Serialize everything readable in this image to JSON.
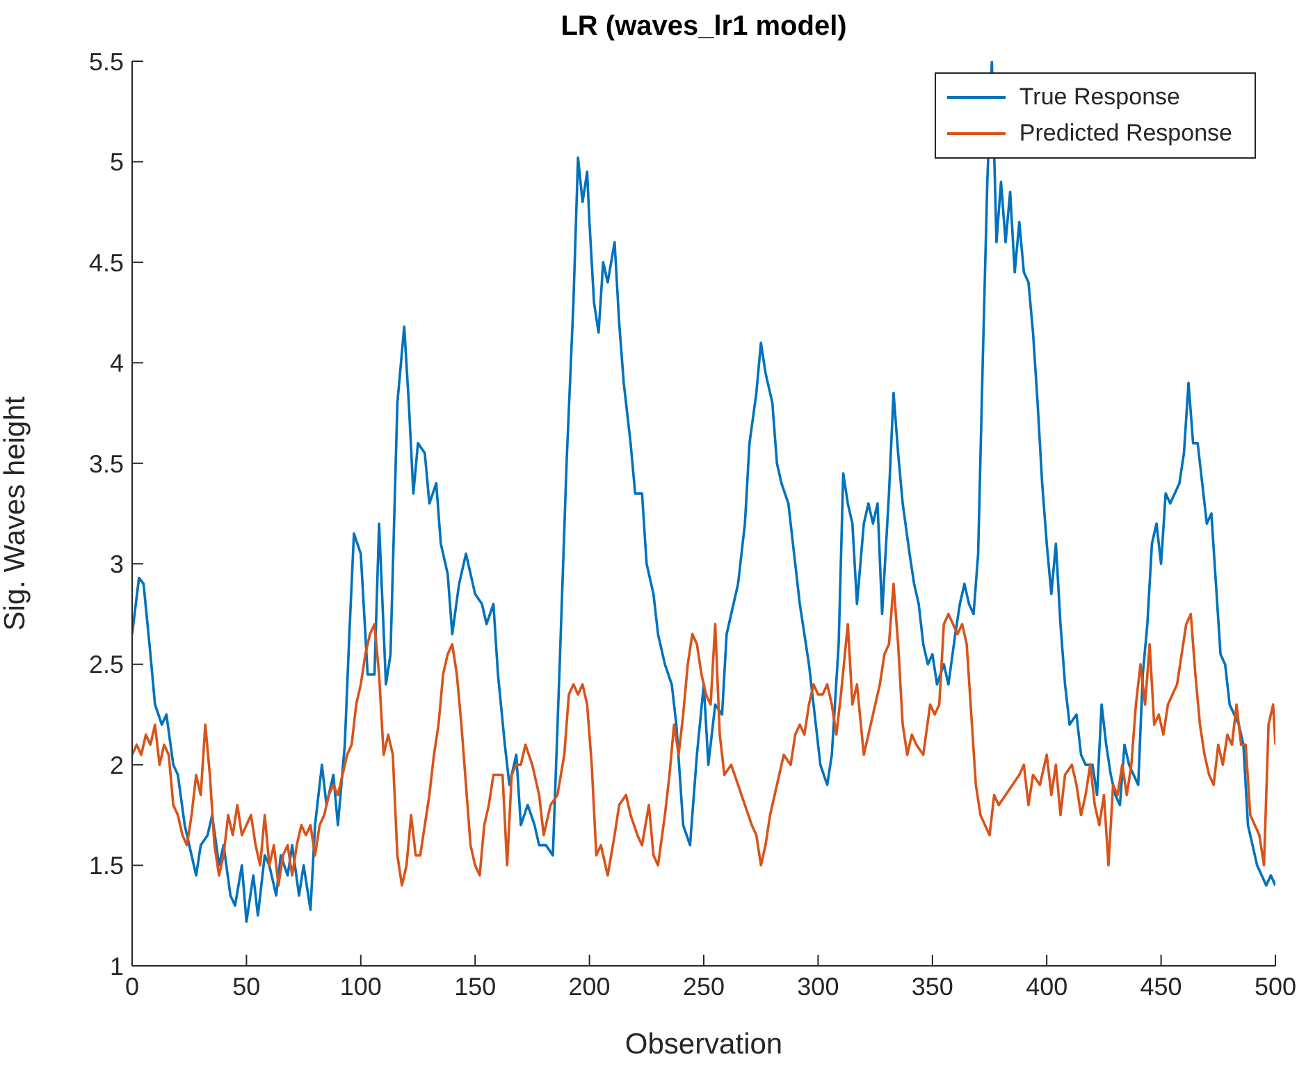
{
  "chart_data": {
    "type": "line",
    "title": "LR (waves_lr1 model)",
    "xlabel": "Observation",
    "ylabel": "Sig. Waves height",
    "xlim": [
      0,
      500
    ],
    "xticks": [
      0,
      50,
      100,
      150,
      200,
      250,
      300,
      350,
      400,
      450,
      500
    ],
    "ylim": [
      1,
      5.5
    ],
    "yticks": [
      1,
      1.5,
      2,
      2.5,
      3,
      3.5,
      4,
      4.5,
      5,
      5.5
    ],
    "legend": "top right",
    "marker": "none",
    "line_style": "solid",
    "series": [
      {
        "name": "True Response",
        "color": "#0072bd",
        "x": [
          0,
          3,
          5,
          8,
          10,
          13,
          15,
          18,
          20,
          23,
          25,
          28,
          30,
          33,
          35,
          38,
          40,
          43,
          45,
          48,
          50,
          53,
          55,
          58,
          60,
          63,
          65,
          68,
          70,
          73,
          75,
          78,
          80,
          83,
          85,
          88,
          90,
          93,
          95,
          97,
          100,
          103,
          106,
          108,
          111,
          113,
          116,
          119,
          121,
          123,
          125,
          128,
          130,
          133,
          135,
          138,
          140,
          143,
          146,
          148,
          150,
          153,
          155,
          158,
          160,
          163,
          165,
          168,
          170,
          173,
          176,
          178,
          181,
          184,
          187,
          190,
          193,
          195,
          197,
          199,
          200,
          202,
          204,
          206,
          208,
          211,
          213,
          215,
          218,
          220,
          223,
          225,
          228,
          230,
          233,
          236,
          238,
          241,
          244,
          247,
          250,
          252,
          255,
          258,
          260,
          263,
          265,
          268,
          270,
          273,
          275,
          277,
          280,
          282,
          284,
          287,
          289,
          292,
          294,
          296,
          299,
          301,
          304,
          306,
          309,
          311,
          313,
          315,
          317,
          320,
          322,
          324,
          326,
          328,
          331,
          333,
          335,
          337,
          340,
          342,
          344,
          346,
          348,
          350,
          352,
          355,
          357,
          360,
          362,
          364,
          366,
          368,
          370,
          372,
          374,
          376,
          378,
          380,
          382,
          384,
          386,
          388,
          390,
          392,
          394,
          396,
          398,
          400,
          402,
          404,
          406,
          408,
          410,
          413,
          415,
          417,
          420,
          422,
          424,
          426,
          428,
          430,
          432,
          434,
          436,
          438,
          440,
          442,
          444,
          446,
          448,
          450,
          452,
          454,
          456,
          458,
          460,
          462,
          464,
          466,
          468,
          470,
          472,
          474,
          476,
          478,
          480,
          482,
          484,
          486,
          488,
          490,
          492,
          494,
          496,
          498,
          500
        ],
        "values": [
          2.65,
          2.93,
          2.9,
          2.55,
          2.3,
          2.2,
          2.25,
          2.0,
          1.95,
          1.7,
          1.6,
          1.45,
          1.6,
          1.65,
          1.75,
          1.5,
          1.6,
          1.35,
          1.3,
          1.5,
          1.22,
          1.45,
          1.25,
          1.55,
          1.5,
          1.35,
          1.55,
          1.45,
          1.6,
          1.35,
          1.5,
          1.28,
          1.7,
          2.0,
          1.8,
          1.95,
          1.7,
          2.1,
          2.65,
          3.15,
          3.05,
          2.45,
          2.45,
          3.2,
          2.4,
          2.55,
          3.8,
          4.18,
          3.8,
          3.35,
          3.6,
          3.55,
          3.3,
          3.4,
          3.1,
          2.95,
          2.65,
          2.9,
          3.05,
          2.95,
          2.85,
          2.8,
          2.7,
          2.8,
          2.45,
          2.1,
          1.9,
          2.05,
          1.7,
          1.8,
          1.7,
          1.6,
          1.6,
          1.55,
          2.5,
          3.5,
          4.3,
          5.02,
          4.8,
          4.95,
          4.7,
          4.3,
          4.15,
          4.5,
          4.4,
          4.6,
          4.2,
          3.9,
          3.6,
          3.35,
          3.35,
          3.0,
          2.85,
          2.65,
          2.5,
          2.4,
          2.2,
          1.7,
          1.6,
          2.05,
          2.4,
          2.0,
          2.3,
          2.25,
          2.65,
          2.8,
          2.9,
          3.2,
          3.6,
          3.85,
          4.1,
          3.95,
          3.8,
          3.5,
          3.4,
          3.3,
          3.1,
          2.8,
          2.65,
          2.5,
          2.2,
          2.0,
          1.9,
          2.05,
          2.6,
          3.45,
          3.3,
          3.2,
          2.8,
          3.2,
          3.3,
          3.2,
          3.3,
          2.75,
          3.35,
          3.85,
          3.55,
          3.3,
          3.05,
          2.9,
          2.8,
          2.6,
          2.5,
          2.55,
          2.4,
          2.5,
          2.4,
          2.65,
          2.8,
          2.9,
          2.8,
          2.75,
          3.05,
          4.0,
          4.9,
          5.5,
          4.6,
          4.9,
          4.6,
          4.85,
          4.45,
          4.7,
          4.45,
          4.4,
          4.15,
          3.8,
          3.4,
          3.1,
          2.85,
          3.1,
          2.7,
          2.4,
          2.2,
          2.25,
          2.05,
          2.0,
          2.0,
          1.85,
          2.3,
          2.1,
          1.95,
          1.85,
          1.8,
          2.1,
          2.0,
          1.95,
          1.9,
          2.45,
          2.7,
          3.1,
          3.2,
          3.0,
          3.35,
          3.3,
          3.35,
          3.4,
          3.55,
          3.9,
          3.6,
          3.6,
          3.4,
          3.2,
          3.25,
          2.9,
          2.55,
          2.5,
          2.3,
          2.25,
          2.2,
          2.1,
          1.7,
          1.6,
          1.5,
          1.45,
          1.4,
          1.45,
          1.4
        ]
      },
      {
        "name": "Predicted Response",
        "color": "#d95319",
        "x": [
          0,
          2,
          4,
          6,
          8,
          10,
          12,
          14,
          16,
          18,
          20,
          22,
          24,
          26,
          28,
          30,
          32,
          34,
          36,
          38,
          40,
          42,
          44,
          46,
          48,
          50,
          52,
          54,
          56,
          58,
          60,
          62,
          64,
          66,
          68,
          70,
          72,
          74,
          76,
          78,
          80,
          82,
          84,
          86,
          88,
          90,
          92,
          94,
          96,
          98,
          100,
          102,
          104,
          106,
          108,
          110,
          112,
          114,
          116,
          118,
          120,
          122,
          124,
          126,
          128,
          130,
          132,
          134,
          136,
          138,
          140,
          142,
          144,
          146,
          148,
          150,
          152,
          154,
          156,
          158,
          160,
          162,
          164,
          166,
          168,
          170,
          172,
          175,
          178,
          180,
          183,
          186,
          189,
          191,
          193,
          195,
          197,
          199,
          201,
          203,
          205,
          208,
          211,
          213,
          216,
          218,
          221,
          223,
          226,
          228,
          230,
          233,
          235,
          237,
          239,
          241,
          243,
          245,
          247,
          249,
          251,
          253,
          255,
          257,
          259,
          262,
          265,
          268,
          271,
          273,
          275,
          277,
          279,
          282,
          285,
          288,
          290,
          292,
          294,
          296,
          298,
          300,
          302,
          304,
          306,
          308,
          310,
          313,
          315,
          317,
          320,
          322,
          325,
          327,
          329,
          331,
          333,
          335,
          337,
          339,
          341,
          343,
          346,
          349,
          351,
          353,
          355,
          357,
          359,
          361,
          363,
          365,
          367,
          369,
          371,
          373,
          375,
          377,
          379,
          382,
          385,
          388,
          390,
          392,
          394,
          397,
          400,
          402,
          404,
          406,
          408,
          411,
          413,
          415,
          417,
          419,
          421,
          423,
          425,
          427,
          429,
          431,
          433,
          435,
          437,
          439,
          441,
          443,
          445,
          447,
          449,
          451,
          453,
          455,
          457,
          459,
          461,
          463,
          465,
          467,
          469,
          471,
          473,
          475,
          477,
          479,
          481,
          483,
          485,
          487,
          489,
          491,
          493,
          495,
          497,
          499,
          500
        ],
        "values": [
          2.05,
          2.1,
          2.05,
          2.15,
          2.1,
          2.2,
          2.0,
          2.1,
          2.05,
          1.8,
          1.75,
          1.65,
          1.6,
          1.75,
          1.95,
          1.85,
          2.2,
          1.95,
          1.6,
          1.45,
          1.55,
          1.75,
          1.65,
          1.8,
          1.65,
          1.7,
          1.75,
          1.6,
          1.5,
          1.75,
          1.5,
          1.6,
          1.4,
          1.55,
          1.6,
          1.45,
          1.6,
          1.7,
          1.65,
          1.7,
          1.55,
          1.7,
          1.75,
          1.85,
          1.9,
          1.85,
          1.95,
          2.05,
          2.1,
          2.3,
          2.4,
          2.55,
          2.65,
          2.7,
          2.45,
          2.05,
          2.15,
          2.05,
          1.55,
          1.4,
          1.5,
          1.75,
          1.55,
          1.55,
          1.7,
          1.85,
          2.05,
          2.2,
          2.45,
          2.55,
          2.6,
          2.45,
          2.2,
          1.9,
          1.6,
          1.5,
          1.45,
          1.7,
          1.8,
          1.95,
          1.95,
          1.95,
          1.5,
          1.95,
          2.0,
          2.0,
          2.1,
          2.0,
          1.85,
          1.65,
          1.8,
          1.85,
          2.05,
          2.35,
          2.4,
          2.35,
          2.4,
          2.3,
          2.0,
          1.55,
          1.6,
          1.45,
          1.65,
          1.8,
          1.85,
          1.75,
          1.65,
          1.6,
          1.8,
          1.55,
          1.5,
          1.75,
          1.95,
          2.2,
          2.05,
          2.25,
          2.5,
          2.65,
          2.6,
          2.45,
          2.35,
          2.3,
          2.7,
          2.15,
          1.95,
          2.0,
          1.9,
          1.8,
          1.7,
          1.65,
          1.5,
          1.6,
          1.75,
          1.9,
          2.05,
          2.0,
          2.15,
          2.2,
          2.15,
          2.3,
          2.4,
          2.35,
          2.35,
          2.4,
          2.3,
          2.15,
          2.35,
          2.7,
          2.3,
          2.4,
          2.05,
          2.15,
          2.3,
          2.4,
          2.55,
          2.6,
          2.9,
          2.6,
          2.2,
          2.05,
          2.15,
          2.1,
          2.05,
          2.3,
          2.25,
          2.3,
          2.7,
          2.75,
          2.7,
          2.65,
          2.7,
          2.6,
          2.25,
          1.9,
          1.75,
          1.7,
          1.65,
          1.85,
          1.8,
          1.85,
          1.9,
          1.95,
          2.0,
          1.8,
          1.95,
          1.9,
          2.05,
          1.85,
          2.0,
          1.75,
          1.95,
          2.0,
          1.9,
          1.75,
          1.85,
          2.0,
          1.8,
          1.7,
          1.85,
          1.5,
          1.9,
          1.85,
          2.0,
          1.85,
          2.0,
          2.3,
          2.5,
          2.3,
          2.6,
          2.2,
          2.25,
          2.15,
          2.3,
          2.35,
          2.4,
          2.55,
          2.7,
          2.75,
          2.45,
          2.2,
          2.05,
          1.95,
          1.9,
          2.1,
          2.0,
          2.15,
          2.1,
          2.3,
          2.1,
          2.1,
          1.75,
          1.7,
          1.65,
          1.5,
          2.2,
          2.3,
          2.1
        ]
      }
    ]
  }
}
